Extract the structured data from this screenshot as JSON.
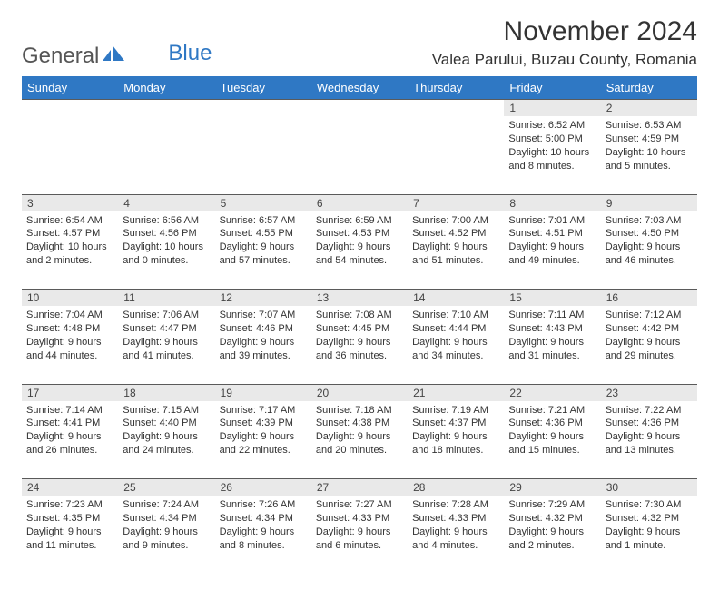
{
  "logo": {
    "part1": "General",
    "part2": "Blue"
  },
  "title": "November 2024",
  "location": "Valea Parului, Buzau County, Romania",
  "colors": {
    "header_bg": "#2f78c4",
    "header_text": "#ffffff",
    "daynum_bg": "#e9e9e9",
    "border": "#5a5a5a",
    "text": "#333333"
  },
  "weekdays": [
    "Sunday",
    "Monday",
    "Tuesday",
    "Wednesday",
    "Thursday",
    "Friday",
    "Saturday"
  ],
  "weeks": [
    {
      "nums": [
        "",
        "",
        "",
        "",
        "",
        "1",
        "2"
      ],
      "cells": [
        null,
        null,
        null,
        null,
        null,
        {
          "sunrise": "Sunrise: 6:52 AM",
          "sunset": "Sunset: 5:00 PM",
          "day1": "Daylight: 10 hours",
          "day2": "and 8 minutes."
        },
        {
          "sunrise": "Sunrise: 6:53 AM",
          "sunset": "Sunset: 4:59 PM",
          "day1": "Daylight: 10 hours",
          "day2": "and 5 minutes."
        }
      ]
    },
    {
      "nums": [
        "3",
        "4",
        "5",
        "6",
        "7",
        "8",
        "9"
      ],
      "cells": [
        {
          "sunrise": "Sunrise: 6:54 AM",
          "sunset": "Sunset: 4:57 PM",
          "day1": "Daylight: 10 hours",
          "day2": "and 2 minutes."
        },
        {
          "sunrise": "Sunrise: 6:56 AM",
          "sunset": "Sunset: 4:56 PM",
          "day1": "Daylight: 10 hours",
          "day2": "and 0 minutes."
        },
        {
          "sunrise": "Sunrise: 6:57 AM",
          "sunset": "Sunset: 4:55 PM",
          "day1": "Daylight: 9 hours",
          "day2": "and 57 minutes."
        },
        {
          "sunrise": "Sunrise: 6:59 AM",
          "sunset": "Sunset: 4:53 PM",
          "day1": "Daylight: 9 hours",
          "day2": "and 54 minutes."
        },
        {
          "sunrise": "Sunrise: 7:00 AM",
          "sunset": "Sunset: 4:52 PM",
          "day1": "Daylight: 9 hours",
          "day2": "and 51 minutes."
        },
        {
          "sunrise": "Sunrise: 7:01 AM",
          "sunset": "Sunset: 4:51 PM",
          "day1": "Daylight: 9 hours",
          "day2": "and 49 minutes."
        },
        {
          "sunrise": "Sunrise: 7:03 AM",
          "sunset": "Sunset: 4:50 PM",
          "day1": "Daylight: 9 hours",
          "day2": "and 46 minutes."
        }
      ]
    },
    {
      "nums": [
        "10",
        "11",
        "12",
        "13",
        "14",
        "15",
        "16"
      ],
      "cells": [
        {
          "sunrise": "Sunrise: 7:04 AM",
          "sunset": "Sunset: 4:48 PM",
          "day1": "Daylight: 9 hours",
          "day2": "and 44 minutes."
        },
        {
          "sunrise": "Sunrise: 7:06 AM",
          "sunset": "Sunset: 4:47 PM",
          "day1": "Daylight: 9 hours",
          "day2": "and 41 minutes."
        },
        {
          "sunrise": "Sunrise: 7:07 AM",
          "sunset": "Sunset: 4:46 PM",
          "day1": "Daylight: 9 hours",
          "day2": "and 39 minutes."
        },
        {
          "sunrise": "Sunrise: 7:08 AM",
          "sunset": "Sunset: 4:45 PM",
          "day1": "Daylight: 9 hours",
          "day2": "and 36 minutes."
        },
        {
          "sunrise": "Sunrise: 7:10 AM",
          "sunset": "Sunset: 4:44 PM",
          "day1": "Daylight: 9 hours",
          "day2": "and 34 minutes."
        },
        {
          "sunrise": "Sunrise: 7:11 AM",
          "sunset": "Sunset: 4:43 PM",
          "day1": "Daylight: 9 hours",
          "day2": "and 31 minutes."
        },
        {
          "sunrise": "Sunrise: 7:12 AM",
          "sunset": "Sunset: 4:42 PM",
          "day1": "Daylight: 9 hours",
          "day2": "and 29 minutes."
        }
      ]
    },
    {
      "nums": [
        "17",
        "18",
        "19",
        "20",
        "21",
        "22",
        "23"
      ],
      "cells": [
        {
          "sunrise": "Sunrise: 7:14 AM",
          "sunset": "Sunset: 4:41 PM",
          "day1": "Daylight: 9 hours",
          "day2": "and 26 minutes."
        },
        {
          "sunrise": "Sunrise: 7:15 AM",
          "sunset": "Sunset: 4:40 PM",
          "day1": "Daylight: 9 hours",
          "day2": "and 24 minutes."
        },
        {
          "sunrise": "Sunrise: 7:17 AM",
          "sunset": "Sunset: 4:39 PM",
          "day1": "Daylight: 9 hours",
          "day2": "and 22 minutes."
        },
        {
          "sunrise": "Sunrise: 7:18 AM",
          "sunset": "Sunset: 4:38 PM",
          "day1": "Daylight: 9 hours",
          "day2": "and 20 minutes."
        },
        {
          "sunrise": "Sunrise: 7:19 AM",
          "sunset": "Sunset: 4:37 PM",
          "day1": "Daylight: 9 hours",
          "day2": "and 18 minutes."
        },
        {
          "sunrise": "Sunrise: 7:21 AM",
          "sunset": "Sunset: 4:36 PM",
          "day1": "Daylight: 9 hours",
          "day2": "and 15 minutes."
        },
        {
          "sunrise": "Sunrise: 7:22 AM",
          "sunset": "Sunset: 4:36 PM",
          "day1": "Daylight: 9 hours",
          "day2": "and 13 minutes."
        }
      ]
    },
    {
      "nums": [
        "24",
        "25",
        "26",
        "27",
        "28",
        "29",
        "30"
      ],
      "cells": [
        {
          "sunrise": "Sunrise: 7:23 AM",
          "sunset": "Sunset: 4:35 PM",
          "day1": "Daylight: 9 hours",
          "day2": "and 11 minutes."
        },
        {
          "sunrise": "Sunrise: 7:24 AM",
          "sunset": "Sunset: 4:34 PM",
          "day1": "Daylight: 9 hours",
          "day2": "and 9 minutes."
        },
        {
          "sunrise": "Sunrise: 7:26 AM",
          "sunset": "Sunset: 4:34 PM",
          "day1": "Daylight: 9 hours",
          "day2": "and 8 minutes."
        },
        {
          "sunrise": "Sunrise: 7:27 AM",
          "sunset": "Sunset: 4:33 PM",
          "day1": "Daylight: 9 hours",
          "day2": "and 6 minutes."
        },
        {
          "sunrise": "Sunrise: 7:28 AM",
          "sunset": "Sunset: 4:33 PM",
          "day1": "Daylight: 9 hours",
          "day2": "and 4 minutes."
        },
        {
          "sunrise": "Sunrise: 7:29 AM",
          "sunset": "Sunset: 4:32 PM",
          "day1": "Daylight: 9 hours",
          "day2": "and 2 minutes."
        },
        {
          "sunrise": "Sunrise: 7:30 AM",
          "sunset": "Sunset: 4:32 PM",
          "day1": "Daylight: 9 hours",
          "day2": "and 1 minute."
        }
      ]
    }
  ]
}
